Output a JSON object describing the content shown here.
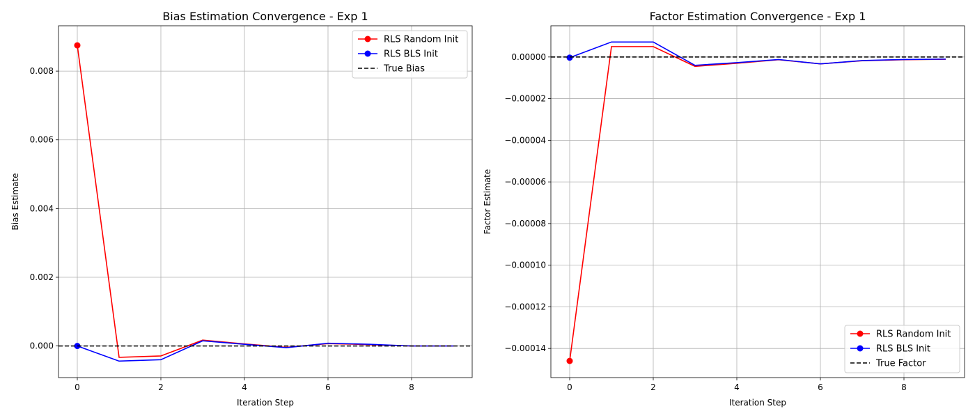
{
  "chart_data": [
    {
      "type": "line",
      "title": "Bias Estimation Convergence - Exp 1",
      "xlabel": "Iteration Step",
      "ylabel": "Bias Estimate",
      "xlim": [
        -0.45,
        9.45
      ],
      "ylim": [
        -0.00092,
        0.00932
      ],
      "xticks": [
        0,
        2,
        4,
        6,
        8
      ],
      "xtick_labels": [
        "0",
        "2",
        "4",
        "6",
        "8"
      ],
      "yticks": [
        0.0,
        0.002,
        0.004,
        0.006,
        0.008
      ],
      "ytick_labels": [
        "0.000",
        "0.002",
        "0.004",
        "0.006",
        "0.008"
      ],
      "grid": true,
      "legend_position": "top-right",
      "x": [
        0,
        1,
        2,
        3,
        4,
        5,
        6,
        7,
        8,
        9
      ],
      "series": [
        {
          "name": "RLS Random Init",
          "color": "#ff0000",
          "style": "solid",
          "marker": "first",
          "values": [
            0.00875,
            -0.00033,
            -0.00029,
            0.00017,
            6e-05,
            -4e-05,
            7e-05,
            4e-05,
            0.0,
            0.0
          ]
        },
        {
          "name": "RLS BLS Init",
          "color": "#0000ff",
          "style": "solid",
          "marker": "first",
          "values": [
            0.0,
            -0.00044,
            -0.0004,
            0.00015,
            5e-05,
            -5e-05,
            8e-05,
            5e-05,
            0.0,
            0.0
          ]
        },
        {
          "name": "True Bias",
          "color": "#000000",
          "style": "dashed",
          "marker": "none",
          "constant": 0.0
        }
      ]
    },
    {
      "type": "line",
      "title": "Factor Estimation Convergence - Exp 1",
      "xlabel": "Iteration Step",
      "ylabel": "Factor Estimate",
      "xlim": [
        -0.45,
        9.45
      ],
      "ylim": [
        -0.000154,
        1.5e-05
      ],
      "xticks": [
        0,
        2,
        4,
        6,
        8
      ],
      "xtick_labels": [
        "0",
        "2",
        "4",
        "6",
        "8"
      ],
      "yticks": [
        0.0,
        -2e-05,
        -4e-05,
        -6e-05,
        -8e-05,
        -0.0001,
        -0.00012,
        -0.00014
      ],
      "ytick_labels": [
        "0.00000",
        "−0.00002",
        "−0.00004",
        "−0.00006",
        "−0.00008",
        "−0.00010",
        "−0.00012",
        "−0.00014"
      ],
      "grid": true,
      "legend_position": "bottom-right",
      "x": [
        0,
        1,
        2,
        3,
        4,
        5,
        6,
        7,
        8,
        9
      ],
      "series": [
        {
          "name": "RLS Random Init",
          "color": "#ff0000",
          "style": "solid",
          "marker": "first",
          "values": [
            -0.000146,
            5e-06,
            5e-06,
            -4.5e-06,
            -3e-06,
            -1.3e-06,
            -3.3e-06,
            -1.8e-06,
            -1.3e-06,
            -1.1e-06
          ]
        },
        {
          "name": "RLS BLS Init",
          "color": "#0000ff",
          "style": "solid",
          "marker": "first",
          "values": [
            -3e-07,
            7.2e-06,
            7.2e-06,
            -4e-06,
            -2.7e-06,
            -1.2e-06,
            -3.3e-06,
            -1.7e-06,
            -1.2e-06,
            -1e-06
          ]
        },
        {
          "name": "True Factor",
          "color": "#000000",
          "style": "dashed",
          "marker": "none",
          "constant": 0.0
        }
      ]
    }
  ]
}
